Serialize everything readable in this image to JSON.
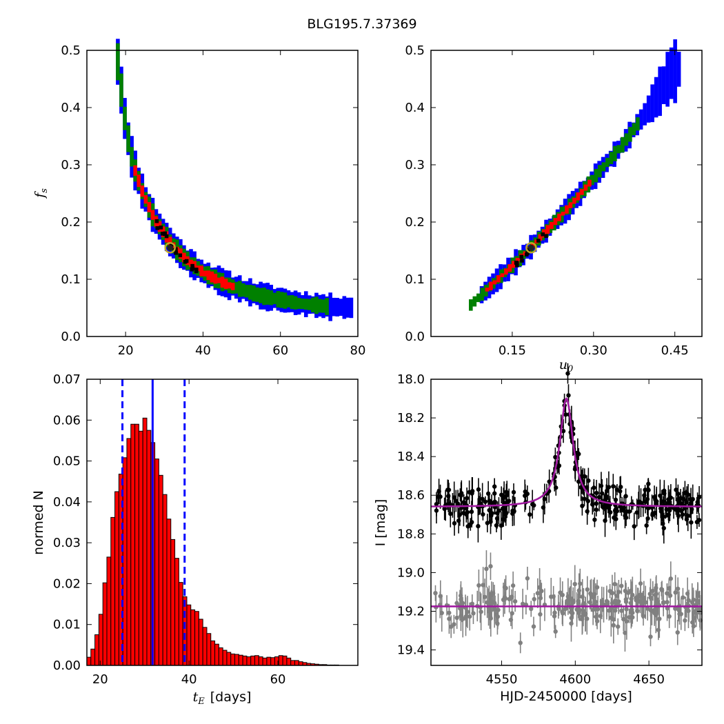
{
  "figure_title": "BLG195.7.37369",
  "colors": {
    "sigma3": "#0000ff",
    "sigma2": "#008000",
    "sigma1": "#ff0000",
    "best_samples": "#000000",
    "best_marker_edge": "#bfa72a",
    "hist_fill": "#ff0000",
    "hist_edge": "#000000",
    "median_line": "#0000ff",
    "model_curve": "#a01aa0",
    "event_points": "#000000",
    "baseline_points": "#808080"
  },
  "chart_data": [
    {
      "id": "te-fs",
      "type": "heatmap",
      "xlabel": "",
      "ylabel_symbol": "f",
      "ylabel_sub": "s",
      "xlim": [
        10,
        80
      ],
      "ylim": [
        0.0,
        0.5
      ],
      "xticks": [
        "20",
        "40",
        "60",
        "80"
      ],
      "yticks": [
        "0.0",
        "0.1",
        "0.2",
        "0.3",
        "0.4",
        "0.5"
      ],
      "best_fit": {
        "x": 31.5,
        "y": 0.155
      },
      "band_points": [
        [
          17.5,
          0.48
        ],
        [
          19.5,
          0.37
        ],
        [
          21.5,
          0.3
        ],
        [
          24,
          0.25
        ],
        [
          27,
          0.205
        ],
        [
          31,
          0.165
        ],
        [
          35,
          0.135
        ],
        [
          40,
          0.11
        ],
        [
          46,
          0.09
        ],
        [
          54,
          0.072
        ],
        [
          64,
          0.058
        ],
        [
          72,
          0.052
        ],
        [
          78,
          0.05
        ]
      ]
    },
    {
      "id": "u0-fs",
      "type": "heatmap",
      "xlabel_symbol": "u",
      "xlabel_sub": "0",
      "xlim": [
        0.0,
        0.5
      ],
      "ylim": [
        0.0,
        0.5
      ],
      "xticks": [
        "0.15",
        "0.30",
        "0.45"
      ],
      "yticks": [
        "0.0",
        "0.1",
        "0.2",
        "0.3",
        "0.4",
        "0.5"
      ],
      "best_fit": {
        "x": 0.185,
        "y": 0.155
      },
      "band_points": [
        [
          0.07,
          0.055
        ],
        [
          0.12,
          0.1
        ],
        [
          0.17,
          0.145
        ],
        [
          0.2,
          0.175
        ],
        [
          0.25,
          0.225
        ],
        [
          0.3,
          0.28
        ],
        [
          0.35,
          0.335
        ],
        [
          0.4,
          0.4
        ],
        [
          0.44,
          0.46
        ],
        [
          0.46,
          0.47
        ]
      ]
    },
    {
      "id": "te-histogram",
      "type": "bar",
      "xlabel_symbol": "t",
      "xlabel_sub": "E",
      "xlabel_text": "[days]",
      "ylabel": "normed N",
      "xlim": [
        17,
        78
      ],
      "ylim": [
        0.0,
        0.07
      ],
      "xticks": [
        "20",
        "40",
        "60"
      ],
      "yticks": [
        "0.00",
        "0.01",
        "0.02",
        "0.03",
        "0.04",
        "0.05",
        "0.06",
        "0.07"
      ],
      "bin_start": 17.0,
      "bin_width": 0.9,
      "values": [
        0.002,
        0.004,
        0.0075,
        0.0125,
        0.0202,
        0.0265,
        0.0362,
        0.0425,
        0.0468,
        0.0508,
        0.0555,
        0.059,
        0.059,
        0.0573,
        0.0605,
        0.0575,
        0.0545,
        0.0505,
        0.0465,
        0.0418,
        0.0358,
        0.0308,
        0.0262,
        0.0203,
        0.0168,
        0.0148,
        0.0136,
        0.0132,
        0.0113,
        0.0093,
        0.0078,
        0.006,
        0.0052,
        0.0043,
        0.0037,
        0.0032,
        0.0028,
        0.0027,
        0.0025,
        0.0023,
        0.0021,
        0.0023,
        0.0024,
        0.0021,
        0.0018,
        0.002,
        0.0019,
        0.0021,
        0.0024,
        0.0023,
        0.0018,
        0.0012,
        0.0012,
        0.0009,
        0.0007,
        0.0005,
        0.0004,
        0.0003,
        0.0002,
        0.0002,
        0.0001,
        0.0001,
        0.0001
      ],
      "median": 31.8,
      "bounds": [
        25.0,
        39.0
      ]
    },
    {
      "id": "lightcurve",
      "type": "scatter",
      "xlabel": "HJD-2450000 [days]",
      "ylabel": "I [mag]",
      "xlim": [
        4502,
        4686
      ],
      "ylim": [
        19.48,
        18.0
      ],
      "xticks": [
        "4550",
        "4600",
        "4650"
      ],
      "yticks": [
        "18.0",
        "18.2",
        "18.4",
        "18.6",
        "18.8",
        "19.0",
        "19.2",
        "19.4"
      ],
      "model": {
        "t0": 4594.0,
        "peak_mag": 18.1,
        "base_mag": 18.66,
        "width": 5.5
      },
      "baseline_model": 19.175
    }
  ]
}
